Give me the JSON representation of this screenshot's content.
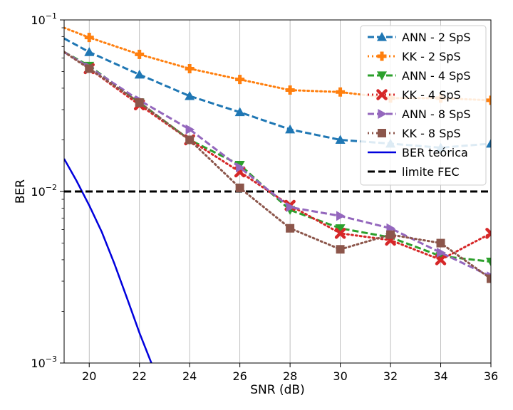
{
  "chart_data": {
    "type": "line",
    "xlabel": "SNR (dB)",
    "ylabel": "BER",
    "xlim": [
      19,
      36
    ],
    "ylim": [
      0.001,
      0.1
    ],
    "y_scale": "log",
    "x_ticks": [
      20,
      22,
      24,
      26,
      28,
      30,
      32,
      34,
      36
    ],
    "y_ticks": [
      {
        "value": 0.001,
        "label_base": "10",
        "label_exp": "−3"
      },
      {
        "value": 0.01,
        "label_base": "10",
        "label_exp": "−2"
      },
      {
        "value": 0.1,
        "label_base": "10",
        "label_exp": "−1"
      }
    ],
    "grid": "vertical",
    "legend_position": "top-right",
    "series": [
      {
        "name": "ANN - 2 SpS",
        "color": "#1f77b4",
        "line": "dashed",
        "marker": "triangle-up",
        "x": [
          19,
          20,
          22,
          24,
          26,
          28,
          30,
          32,
          34,
          36
        ],
        "y": [
          0.078,
          0.065,
          0.048,
          0.036,
          0.029,
          0.023,
          0.02,
          0.019,
          0.018,
          0.019
        ]
      },
      {
        "name": "KK - 2 SpS",
        "color": "#ff7f0e",
        "line": "dotted",
        "marker": "plus",
        "x": [
          19,
          20,
          22,
          24,
          26,
          28,
          30,
          32,
          34,
          36
        ],
        "y": [
          0.09,
          0.079,
          0.063,
          0.052,
          0.045,
          0.039,
          0.038,
          0.035,
          0.035,
          0.034
        ]
      },
      {
        "name": "ANN - 4 SpS",
        "color": "#2ca02c",
        "line": "dashed",
        "marker": "triangle-down",
        "x": [
          19,
          20,
          22,
          24,
          26,
          28,
          30,
          32,
          34,
          36
        ],
        "y": [
          0.065,
          0.054,
          0.033,
          0.02,
          0.0143,
          0.0078,
          0.0061,
          0.0054,
          0.0042,
          0.0039
        ]
      },
      {
        "name": "KK - 4 SpS",
        "color": "#d62728",
        "line": "dotted",
        "marker": "x",
        "x": [
          19,
          20,
          22,
          24,
          26,
          28,
          30,
          32,
          34,
          36
        ],
        "y": [
          0.065,
          0.052,
          0.032,
          0.02,
          0.013,
          0.0083,
          0.0057,
          0.0052,
          0.004,
          0.0057
        ]
      },
      {
        "name": "ANN - 8 SpS",
        "color": "#9467bd",
        "line": "dashed",
        "marker": "triangle-right",
        "x": [
          19,
          20,
          22,
          24,
          26,
          28,
          30,
          32,
          34,
          36
        ],
        "y": [
          0.065,
          0.053,
          0.034,
          0.023,
          0.0138,
          0.0081,
          0.0072,
          0.0061,
          0.0044,
          0.0032
        ]
      },
      {
        "name": "KK - 8 SpS",
        "color": "#8c564b",
        "line": "dotted",
        "marker": "square",
        "x": [
          19,
          20,
          22,
          24,
          26,
          28,
          30,
          32,
          34,
          36
        ],
        "y": [
          0.065,
          0.052,
          0.033,
          0.02,
          0.0105,
          0.0061,
          0.0046,
          0.0056,
          0.005,
          0.0031
        ]
      },
      {
        "name": "BER teórica",
        "color": "#0000dd",
        "line": "solid",
        "marker": "none",
        "x": [
          19,
          19.5,
          20,
          20.5,
          21,
          21.5,
          22,
          22.5
        ],
        "y": [
          0.0155,
          0.0115,
          0.0083,
          0.0058,
          0.0038,
          0.0024,
          0.0015,
          0.00098
        ]
      },
      {
        "name": "limite FEC",
        "color": "#000000",
        "line": "dashed",
        "marker": "none",
        "x": [
          19,
          36
        ],
        "y": [
          0.01,
          0.01
        ]
      }
    ]
  }
}
